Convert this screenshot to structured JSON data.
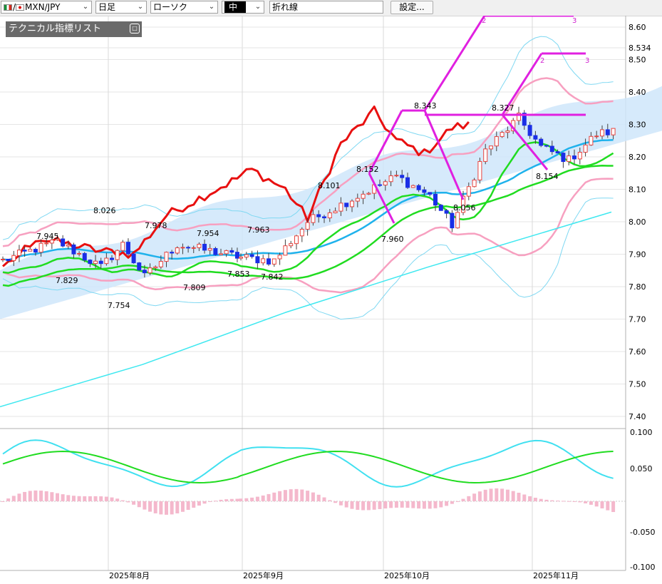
{
  "toolbar": {
    "pair": "MXN/JPY",
    "period": "日足",
    "chart_type": "ローソク",
    "candle_style": "中",
    "drawing_tool": "折れ線",
    "settings_label": "設定..."
  },
  "indicator_panel": {
    "title": "テクニカル指標リスト"
  },
  "colors": {
    "bull_candle": "#e8433e",
    "bear_candle": "#1a2ee6",
    "red_line": "#e81010",
    "cyan_line": "#1fb2ec",
    "green_line": "#20dc20",
    "pink_band": "#f7a0c0",
    "bb_outer": "#7fd8f2",
    "long_ma": "#3fe8f0",
    "cloud_fill": "#cfe6fa",
    "zigzag": "#e020e0"
  },
  "chart_data": {
    "type": "candlestick",
    "y_axis": {
      "min": 7.4,
      "max": 8.6,
      "ticks": [
        "8.60",
        "8.50",
        "8.40",
        "8.30",
        "8.20",
        "8.10",
        "8.00",
        "7.90",
        "7.80",
        "7.70",
        "7.60",
        "7.50",
        "7.40"
      ],
      "current_price": "8.534"
    },
    "x_axis": {
      "labels": [
        "2025年8月",
        "2025年9月",
        "2025年10月",
        "2025年11月"
      ]
    },
    "annotations": [
      "7.945",
      "7.829",
      "8.026",
      "7.754",
      "7.978",
      "7.809",
      "7.954",
      "7.853",
      "7.963",
      "7.842",
      "8.101",
      "8.152",
      "7.960",
      "8.343",
      "8.056",
      "8.327",
      "8.154"
    ],
    "zigzag_labels": [
      "2",
      "3",
      "2",
      "3"
    ],
    "oscillator": {
      "ticks": [
        "0.100",
        "0.050",
        "-0.050",
        "-0.100"
      ]
    }
  }
}
